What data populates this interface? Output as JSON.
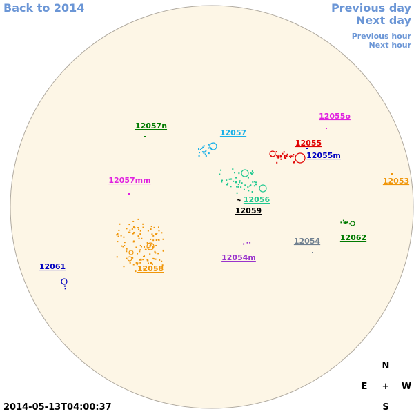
{
  "nav": {
    "back": "Back to 2014",
    "prev_day": "Previous day",
    "next_day": "Next day",
    "prev_hour": "Previous hour",
    "next_hour": "Next hour"
  },
  "regions": [
    {
      "label": "12057n",
      "color": "#007a00"
    },
    {
      "label": "12057",
      "color": "#1ab0e8"
    },
    {
      "label": "12055o",
      "color": "#e020e0"
    },
    {
      "label": "12055",
      "color": "#e00000"
    },
    {
      "label": "12055m",
      "color": "#0000c0"
    },
    {
      "label": "12057mm",
      "color": "#e020e0"
    },
    {
      "label": "12056",
      "color": "#20c890"
    },
    {
      "label": "12053",
      "color": "#f0960a"
    },
    {
      "label": "12059",
      "color": "#000000"
    },
    {
      "label": "12062",
      "color": "#007a00"
    },
    {
      "label": "12054",
      "color": "#708090"
    },
    {
      "label": "12054m",
      "color": "#9933cc"
    },
    {
      "label": "12061",
      "color": "#0000c0"
    },
    {
      "label": "12058",
      "color": "#f0960a"
    }
  ],
  "timestamp": "2014-05-13T04:00:37",
  "compass": {
    "north": "N",
    "east": "E",
    "center": "+",
    "west": "W",
    "south": "S"
  }
}
